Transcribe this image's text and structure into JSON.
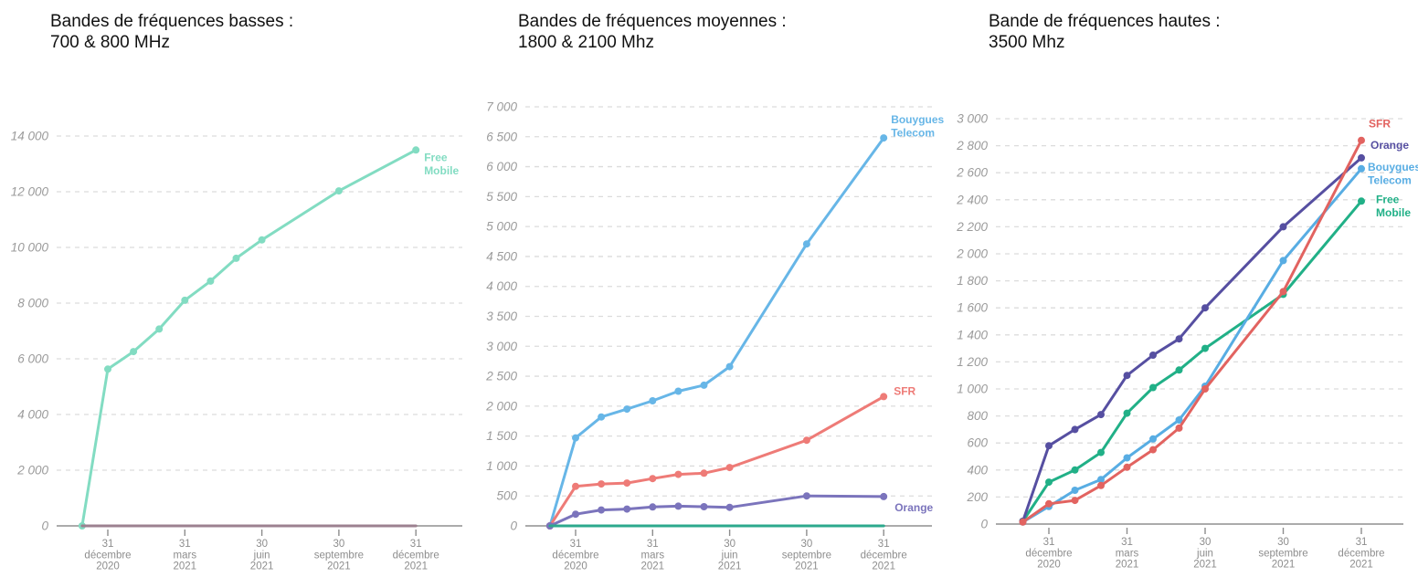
{
  "page": {
    "background": "#ffffff"
  },
  "chart_data": [
    {
      "id": "low-bands",
      "type": "line",
      "title": "Bandes de fréquences basses :\n700 & 800 MHz",
      "x_months": [
        0,
        1,
        2,
        3,
        4,
        5,
        6,
        7,
        10,
        13
      ],
      "x_tick_months": [
        1,
        4,
        7,
        10,
        13
      ],
      "x_tick_labels": [
        [
          "31",
          "décembre",
          "2020"
        ],
        [
          "31",
          "mars",
          "2021"
        ],
        [
          "30",
          "juin",
          "2021"
        ],
        [
          "30",
          "septembre",
          "2021"
        ],
        [
          "31",
          "décembre",
          "2021"
        ]
      ],
      "ylim": [
        0,
        14000
      ],
      "y_step": 2000,
      "y_tick_labels": [
        "0",
        "2 000",
        "4 000",
        "6 000",
        "8 000",
        "10 000",
        "12 000",
        "14 000"
      ],
      "grid": "dashed",
      "legend_position": "end-of-line",
      "series": [
        {
          "name": "Free Mobile",
          "color": "#82dcc2",
          "values": [
            0,
            5630,
            6260,
            7070,
            8100,
            8790,
            9610,
            10270,
            12030,
            13500
          ],
          "show_dots": true,
          "label_lines": [
            "Free",
            "Mobile"
          ],
          "label_dx": 9,
          "label_dy": 12
        },
        {
          "name": "",
          "color": "#9c8190",
          "values": [
            0,
            0,
            0,
            0,
            0,
            0,
            0,
            0,
            0,
            0
          ],
          "show_dots": false,
          "label_lines": [],
          "label_dx": 0,
          "label_dy": 0
        }
      ]
    },
    {
      "id": "mid-bands",
      "type": "line",
      "title": "Bandes de fréquences moyennes :\n1800 & 2100 Mhz",
      "x_months": [
        0,
        1,
        2,
        3,
        4,
        5,
        6,
        7,
        10,
        13
      ],
      "x_tick_months": [
        1,
        4,
        7,
        10,
        13
      ],
      "x_tick_labels": [
        [
          "31",
          "décembre",
          "2020"
        ],
        [
          "31",
          "mars",
          "2021"
        ],
        [
          "30",
          "juin",
          "2021"
        ],
        [
          "30",
          "septembre",
          "2021"
        ],
        [
          "31",
          "décembre",
          "2021"
        ]
      ],
      "ylim": [
        0,
        7000
      ],
      "y_step": 500,
      "y_tick_labels": [
        "0",
        "500",
        "1 000",
        "1 500",
        "2 000",
        "2 500",
        "3 000",
        "3 500",
        "4 000",
        "4 500",
        "5 000",
        "5 500",
        "6 000",
        "6 500",
        "7 000"
      ],
      "grid": "dashed",
      "legend_position": "end-of-line",
      "series": [
        {
          "name": "Bouygues Telecom",
          "color": "#67b6e7",
          "values": [
            0,
            1470,
            1820,
            1950,
            2090,
            2250,
            2350,
            2660,
            4710,
            6480
          ],
          "show_dots": true,
          "label_lines": [
            "Bouygues",
            "Telecom"
          ],
          "label_dx": 8,
          "label_dy": -16
        },
        {
          "name": "SFR",
          "color": "#ee7b77",
          "values": [
            0,
            660,
            700,
            715,
            790,
            860,
            880,
            975,
            1430,
            2160
          ],
          "show_dots": true,
          "label_lines": [
            "SFR"
          ],
          "label_dx": 11,
          "label_dy": -2
        },
        {
          "name": "Orange",
          "color": "#7b74bc",
          "values": [
            0,
            195,
            265,
            280,
            315,
            330,
            320,
            310,
            500,
            490
          ],
          "show_dots": true,
          "label_lines": [
            "Orange"
          ],
          "label_dx": 12,
          "label_dy": 16
        },
        {
          "name": "Free Mobile",
          "color": "#2ca98d",
          "values": [
            0,
            0,
            0,
            0,
            0,
            0,
            0,
            0,
            0,
            0
          ],
          "show_dots": false,
          "label_lines": [],
          "label_dx": 0,
          "label_dy": 0
        }
      ]
    },
    {
      "id": "high-bands",
      "type": "line",
      "title": "Bande de fréquences hautes :\n3500 Mhz",
      "x_months": [
        0,
        1,
        2,
        3,
        4,
        5,
        6,
        7,
        10,
        13
      ],
      "x_tick_months": [
        1,
        4,
        7,
        10,
        13
      ],
      "x_tick_labels": [
        [
          "31",
          "décembre",
          "2020"
        ],
        [
          "31",
          "mars",
          "2021"
        ],
        [
          "30",
          "juin",
          "2021"
        ],
        [
          "30",
          "septembre",
          "2021"
        ],
        [
          "31",
          "décembre",
          "2021"
        ]
      ],
      "ylim": [
        0,
        3000
      ],
      "y_step": 200,
      "y_tick_labels": [
        "0",
        "200",
        "400",
        "600",
        "800",
        "1 000",
        "1 200",
        "1 400",
        "1 600",
        "1 800",
        "2 000",
        "2 200",
        "2 400",
        "2 600",
        "2 800",
        "3 000"
      ],
      "grid": "dashed",
      "legend_position": "end-of-line",
      "series": [
        {
          "name": "Free Mobile",
          "color": "#21b087",
          "values": [
            20,
            310,
            400,
            530,
            820,
            1010,
            1140,
            1300,
            1700,
            2390
          ],
          "show_dots": true,
          "label_lines": [
            "Free",
            "Mobile"
          ],
          "label_dx": 16,
          "label_dy": 2
        },
        {
          "name": "Bouygues Telecom",
          "color": "#58ade3",
          "values": [
            15,
            130,
            250,
            330,
            490,
            630,
            770,
            1020,
            1950,
            2630
          ],
          "show_dots": true,
          "label_lines": [
            "Bouygues",
            "Telecom"
          ],
          "label_dx": 7,
          "label_dy": 2
        },
        {
          "name": "Orange",
          "color": "#564fa1",
          "values": [
            20,
            580,
            700,
            810,
            1100,
            1250,
            1370,
            1600,
            2200,
            2710
          ],
          "show_dots": true,
          "label_lines": [
            "Orange"
          ],
          "label_dx": 10,
          "label_dy": -10
        },
        {
          "name": "SFR",
          "color": "#e26360",
          "values": [
            15,
            150,
            175,
            285,
            420,
            550,
            710,
            1000,
            1720,
            2840
          ],
          "show_dots": true,
          "label_lines": [
            "SFR"
          ],
          "label_dx": 8,
          "label_dy": -14
        }
      ]
    }
  ]
}
